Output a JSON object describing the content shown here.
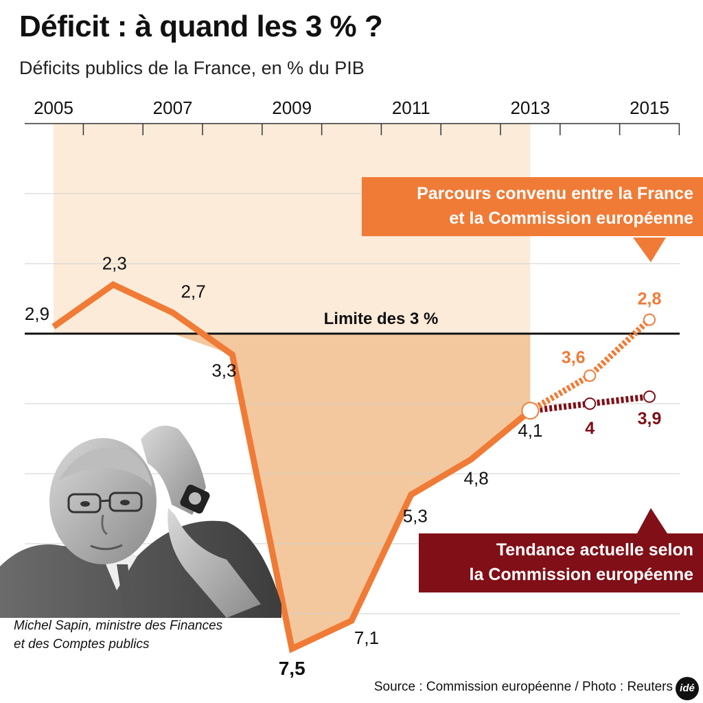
{
  "chart_data": {
    "type": "line",
    "title": "Déficit : à quand les 3 % ?",
    "subtitle": "Déficits publics de la France, en % du PIB",
    "x_tick_labels": [
      "2005",
      "2007",
      "2009",
      "2011",
      "2013",
      "2015"
    ],
    "ylim": [
      0,
      8
    ],
    "y_inverted": true,
    "grid": true,
    "reference_line": {
      "label": "Limite des 3 %",
      "value": 3
    },
    "shaded_period": [
      "2005",
      "2013"
    ],
    "series": [
      {
        "key": "historical",
        "x": [
          2005,
          2006,
          2007,
          2008,
          2009,
          2010,
          2011,
          2012,
          2013
        ],
        "values": [
          2.9,
          2.3,
          2.7,
          3.3,
          7.5,
          7.1,
          5.3,
          4.8,
          4.1
        ],
        "labels": [
          "2,9",
          "2,3",
          "2,7",
          "3,3",
          "7,5",
          "7,1",
          "5,3",
          "4,8",
          "4,1"
        ],
        "color": "#f07b36"
      },
      {
        "key": "agreed_path",
        "name": "Parcours convenu entre la France et la Commission européenne",
        "x": [
          2013,
          2014,
          2015
        ],
        "values": [
          4.1,
          3.6,
          2.8
        ],
        "labels": [
          "",
          "3,6",
          "2,8"
        ],
        "color": "#f07b36"
      },
      {
        "key": "current_trend",
        "name": "Tendance actuelle selon la Commission européenne",
        "x": [
          2013,
          2014,
          2015
        ],
        "values": [
          4.1,
          4.0,
          3.9
        ],
        "labels": [
          "",
          "4",
          "3,9"
        ],
        "color": "#800f17"
      }
    ]
  },
  "callouts": {
    "agreed_line1": "Parcours convenu entre la France",
    "agreed_line2": "et la Commission européenne",
    "trend_line1": "Tendance actuelle selon",
    "trend_line2": "la Commission européenne"
  },
  "photo": {
    "caption_line1": "Michel Sapin, ministre des Finances",
    "caption_line2": "et des Comptes publics"
  },
  "source": "Source : Commission européenne / Photo : Reuters",
  "logo_text": "idé"
}
